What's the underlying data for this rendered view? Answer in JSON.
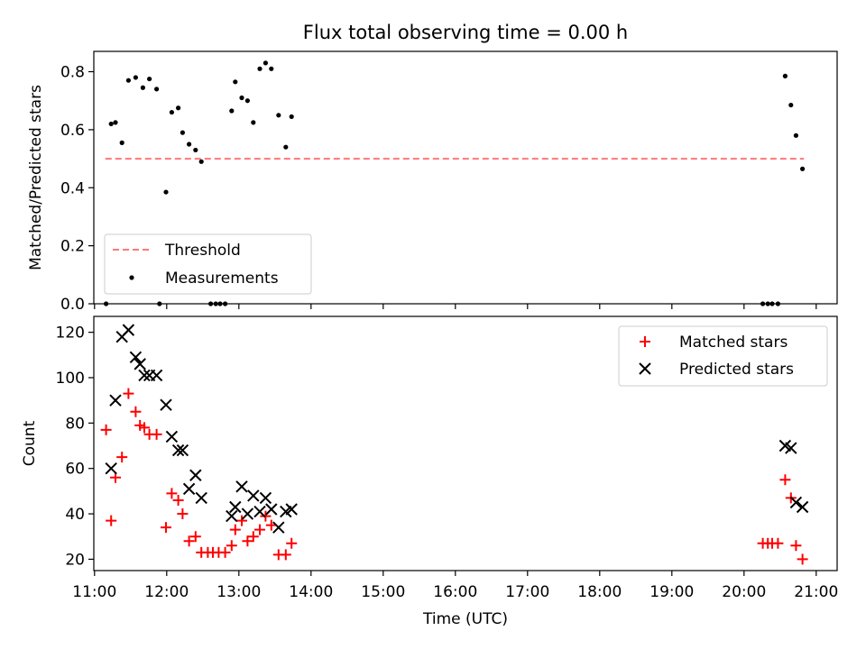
{
  "chart_data": [
    {
      "type": "scatter",
      "title": "Flux total observing time = 0.00 h",
      "ylabel": "Matched/Predicted stars",
      "xlim": [
        10.99,
        21.29
      ],
      "ylim": [
        0,
        0.87
      ],
      "yticks": [
        0.0,
        0.2,
        0.4,
        0.6,
        0.8
      ],
      "ytick_labels": [
        "0.0",
        "0.2",
        "0.4",
        "0.6",
        "0.8"
      ],
      "threshold": {
        "name": "Threshold",
        "value": 0.5,
        "x_range": [
          11.15,
          20.83
        ],
        "color": "#ff7777",
        "style": "dashed"
      },
      "series": [
        {
          "name": "Measurements",
          "color": "#000000",
          "marker": "dot",
          "x": [
            11.16,
            11.23,
            11.29,
            11.38,
            11.47,
            11.57,
            11.67,
            11.76,
            11.86,
            11.9,
            11.99,
            12.07,
            12.16,
            12.22,
            12.31,
            12.4,
            12.48,
            12.61,
            12.68,
            12.74,
            12.81,
            12.9,
            12.95,
            13.04,
            13.12,
            13.2,
            13.29,
            13.37,
            13.45,
            13.55,
            13.65,
            13.73,
            20.26,
            20.33,
            20.39,
            20.47,
            20.57,
            20.65,
            20.72,
            20.81
          ],
          "y": [
            0.0,
            0.62,
            0.625,
            0.555,
            0.77,
            0.78,
            0.745,
            0.775,
            0.74,
            0.0,
            0.385,
            0.66,
            0.675,
            0.59,
            0.55,
            0.53,
            0.49,
            0.0,
            0.0,
            0.0,
            0.0,
            0.665,
            0.765,
            0.71,
            0.7,
            0.625,
            0.81,
            0.83,
            0.81,
            0.65,
            0.54,
            0.645,
            0.0,
            0.0,
            0.0,
            0.0,
            0.785,
            0.685,
            0.58,
            0.465
          ]
        }
      ],
      "legend": {
        "position": "lower-left",
        "entries": [
          "Threshold",
          "Measurements"
        ]
      }
    },
    {
      "type": "scatter",
      "xlabel": "Time (UTC)",
      "ylabel": "Count",
      "xlim": [
        10.99,
        21.29
      ],
      "ylim": [
        15,
        127
      ],
      "xticks": [
        11,
        12,
        13,
        14,
        15,
        16,
        17,
        18,
        19,
        20,
        21
      ],
      "xtick_labels": [
        "11:00",
        "12:00",
        "13:00",
        "14:00",
        "15:00",
        "16:00",
        "17:00",
        "18:00",
        "19:00",
        "20:00",
        "21:00"
      ],
      "yticks": [
        20,
        40,
        60,
        80,
        100,
        120
      ],
      "ytick_labels": [
        "20",
        "40",
        "60",
        "80",
        "100",
        "120"
      ],
      "series": [
        {
          "name": "Matched stars",
          "color": "#ff0000",
          "marker": "plus",
          "x": [
            11.16,
            11.23,
            11.29,
            11.38,
            11.47,
            11.57,
            11.63,
            11.69,
            11.76,
            11.86,
            11.99,
            12.07,
            12.16,
            12.22,
            12.31,
            12.4,
            12.48,
            12.57,
            12.64,
            12.72,
            12.81,
            12.9,
            12.95,
            13.04,
            13.12,
            13.2,
            13.29,
            13.37,
            13.45,
            13.55,
            13.65,
            13.73,
            20.26,
            20.33,
            20.39,
            20.47,
            20.57,
            20.65,
            20.72,
            20.81
          ],
          "y": [
            77,
            37,
            56,
            65,
            93,
            85,
            79,
            78,
            75,
            75,
            34,
            49,
            46,
            40,
            28,
            30,
            23,
            23,
            23,
            23,
            23,
            26,
            33,
            37,
            28,
            30,
            33,
            39,
            35,
            22,
            22,
            27,
            27,
            27,
            27,
            27,
            55,
            47,
            26,
            20
          ]
        },
        {
          "name": "Predicted stars",
          "color": "#000000",
          "marker": "x",
          "x": [
            11.23,
            11.29,
            11.38,
            11.47,
            11.57,
            11.63,
            11.69,
            11.76,
            11.86,
            11.99,
            12.07,
            12.16,
            12.22,
            12.31,
            12.4,
            12.48,
            12.9,
            12.95,
            13.04,
            13.12,
            13.2,
            13.29,
            13.37,
            13.45,
            13.55,
            13.65,
            13.73,
            20.57,
            20.65,
            20.72,
            20.81
          ],
          "y": [
            60,
            90,
            118,
            121,
            109,
            106,
            101,
            101,
            101,
            88,
            74,
            68,
            68,
            51,
            57,
            47,
            39,
            43,
            52,
            40,
            48,
            41,
            47,
            42,
            34,
            41,
            42,
            70,
            69,
            45,
            43
          ]
        }
      ],
      "legend": {
        "position": "upper-right",
        "entries": [
          "Matched stars",
          "Predicted stars"
        ]
      }
    }
  ]
}
